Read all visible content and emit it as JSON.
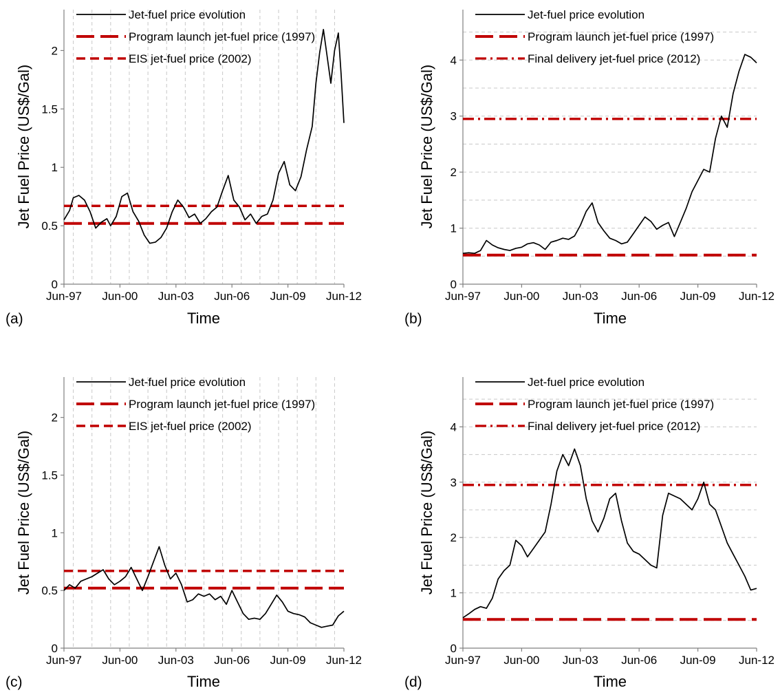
{
  "figure": {
    "xlabel": "Time",
    "ylabel": "Jet Fuel Price (US$/Gal)",
    "x_tick_labels": [
      "Jun-97",
      "Jun-00",
      "Jun-03",
      "Jun-06",
      "Jun-09",
      "Jun-12"
    ]
  },
  "colors": {
    "price_line": "#000000",
    "reference_lines": "#c00000",
    "grid": "#c8c8c8"
  },
  "chart_data": [
    {
      "panel_label": "(a)",
      "type": "line",
      "x_range": [
        1997.5,
        2012.5
      ],
      "ylim": [
        0,
        2.35
      ],
      "y_ticks": [
        0,
        0.5,
        1,
        1.5,
        2
      ],
      "y_tick_labels": [
        "0",
        "0.5",
        "1",
        "1.5",
        "2"
      ],
      "grid": "vertical dashed",
      "legend_position": "top-left",
      "series": [
        {
          "name": "Jet-fuel price evolution",
          "style": "solid",
          "x": [
            1997.5,
            1997.8,
            1998.0,
            1998.3,
            1998.6,
            1998.9,
            1999.2,
            1999.5,
            1999.8,
            2000.0,
            2000.3,
            2000.6,
            2000.9,
            2001.2,
            2001.5,
            2001.8,
            2002.1,
            2002.4,
            2002.7,
            2003.0,
            2003.3,
            2003.6,
            2003.9,
            2004.2,
            2004.5,
            2004.8,
            2005.1,
            2005.4,
            2005.7,
            2006.0,
            2006.3,
            2006.6,
            2006.9,
            2007.2,
            2007.5,
            2007.8,
            2008.1,
            2008.4,
            2008.7,
            2009.0,
            2009.3,
            2009.6,
            2009.9,
            2010.2,
            2010.5,
            2010.8,
            2011.0,
            2011.2,
            2011.4,
            2011.6,
            2011.8,
            2012.0,
            2012.2,
            2012.35,
            2012.5
          ],
          "values": [
            0.55,
            0.63,
            0.74,
            0.76,
            0.72,
            0.62,
            0.48,
            0.53,
            0.56,
            0.5,
            0.58,
            0.75,
            0.78,
            0.62,
            0.54,
            0.42,
            0.35,
            0.36,
            0.4,
            0.48,
            0.62,
            0.72,
            0.66,
            0.57,
            0.6,
            0.52,
            0.56,
            0.62,
            0.66,
            0.8,
            0.93,
            0.72,
            0.66,
            0.55,
            0.6,
            0.52,
            0.58,
            0.6,
            0.72,
            0.95,
            1.05,
            0.85,
            0.8,
            0.92,
            1.15,
            1.35,
            1.72,
            1.98,
            2.18,
            1.95,
            1.72,
            2.0,
            2.15,
            1.8,
            1.38
          ]
        },
        {
          "name": "Program launch jet-fuel price (1997)",
          "style": "long-dash",
          "x": [
            1997.5,
            2012.5
          ],
          "values": [
            0.52,
            0.52
          ]
        },
        {
          "name": "EIS jet-fuel price (2002)",
          "style": "dash",
          "x": [
            1997.5,
            2012.5
          ],
          "values": [
            0.67,
            0.67
          ]
        }
      ]
    },
    {
      "panel_label": "(b)",
      "type": "line",
      "x_range": [
        1997.5,
        2012.5
      ],
      "ylim": [
        0,
        4.9
      ],
      "y_ticks": [
        0,
        1,
        2,
        3,
        4
      ],
      "y_tick_labels": [
        "0",
        "1",
        "2",
        "3",
        "4"
      ],
      "grid": "horizontal dashed",
      "legend_position": "top-left",
      "series": [
        {
          "name": "Jet-fuel price evolution",
          "style": "solid",
          "x": [
            1997.5,
            1997.8,
            1998.1,
            1998.4,
            1998.7,
            1999.0,
            1999.3,
            1999.6,
            1999.9,
            2000.2,
            2000.5,
            2000.8,
            2001.1,
            2001.4,
            2001.7,
            2002.0,
            2002.3,
            2002.6,
            2002.9,
            2003.2,
            2003.5,
            2003.8,
            2004.1,
            2004.4,
            2004.7,
            2005.0,
            2005.3,
            2005.6,
            2005.9,
            2006.2,
            2006.5,
            2006.8,
            2007.1,
            2007.4,
            2007.7,
            2008.0,
            2008.3,
            2008.6,
            2008.9,
            2009.2,
            2009.5,
            2009.8,
            2010.1,
            2010.4,
            2010.7,
            2011.0,
            2011.3,
            2011.6,
            2011.9,
            2012.2,
            2012.5
          ],
          "values": [
            0.55,
            0.56,
            0.55,
            0.6,
            0.78,
            0.7,
            0.65,
            0.62,
            0.6,
            0.64,
            0.66,
            0.72,
            0.74,
            0.7,
            0.62,
            0.75,
            0.78,
            0.82,
            0.8,
            0.86,
            1.05,
            1.3,
            1.45,
            1.1,
            0.95,
            0.82,
            0.78,
            0.72,
            0.75,
            0.9,
            1.05,
            1.2,
            1.12,
            0.98,
            1.05,
            1.1,
            0.85,
            1.1,
            1.35,
            1.65,
            1.85,
            2.05,
            2.0,
            2.6,
            3.0,
            2.8,
            3.4,
            3.8,
            4.1,
            4.05,
            3.95
          ]
        },
        {
          "name": "Program launch jet-fuel price (1997)",
          "style": "long-dash",
          "x": [
            1997.5,
            2012.5
          ],
          "values": [
            0.52,
            0.52
          ]
        },
        {
          "name": "Final delivery jet-fuel price (2012)",
          "style": "dash-dot",
          "x": [
            1997.5,
            2012.5
          ],
          "values": [
            2.95,
            2.95
          ]
        }
      ]
    },
    {
      "panel_label": "(c)",
      "type": "line",
      "x_range": [
        1997.5,
        2012.5
      ],
      "ylim": [
        0,
        2.35
      ],
      "y_ticks": [
        0,
        0.5,
        1,
        1.5,
        2
      ],
      "y_tick_labels": [
        "0",
        "0.5",
        "1",
        "1.5",
        "2"
      ],
      "grid": "vertical dashed",
      "legend_position": "top-left",
      "series": [
        {
          "name": "Jet-fuel price evolution",
          "style": "solid",
          "x": [
            1997.5,
            1997.8,
            1998.1,
            1998.4,
            1998.7,
            1999.0,
            1999.3,
            1999.6,
            1999.9,
            2000.2,
            2000.5,
            2000.8,
            2001.1,
            2001.4,
            2001.7,
            2002.0,
            2002.3,
            2002.6,
            2002.9,
            2003.2,
            2003.5,
            2003.8,
            2004.1,
            2004.4,
            2004.7,
            2005.0,
            2005.3,
            2005.6,
            2005.9,
            2006.2,
            2006.5,
            2006.8,
            2007.1,
            2007.4,
            2007.7,
            2008.0,
            2008.3,
            2008.6,
            2008.9,
            2009.2,
            2009.5,
            2009.8,
            2010.1,
            2010.4,
            2010.7,
            2011.0,
            2011.3,
            2011.6,
            2011.9,
            2012.2,
            2012.5
          ],
          "values": [
            0.5,
            0.55,
            0.52,
            0.58,
            0.6,
            0.62,
            0.65,
            0.68,
            0.6,
            0.55,
            0.58,
            0.62,
            0.7,
            0.6,
            0.5,
            0.62,
            0.75,
            0.88,
            0.72,
            0.6,
            0.65,
            0.55,
            0.4,
            0.42,
            0.47,
            0.45,
            0.47,
            0.42,
            0.45,
            0.38,
            0.5,
            0.4,
            0.3,
            0.25,
            0.26,
            0.25,
            0.3,
            0.38,
            0.46,
            0.4,
            0.32,
            0.3,
            0.29,
            0.27,
            0.22,
            0.2,
            0.18,
            0.19,
            0.2,
            0.28,
            0.32
          ]
        },
        {
          "name": "Program launch jet-fuel price (1997)",
          "style": "long-dash",
          "x": [
            1997.5,
            2012.5
          ],
          "values": [
            0.52,
            0.52
          ]
        },
        {
          "name": "EIS jet-fuel price (2002)",
          "style": "dash",
          "x": [
            1997.5,
            2012.5
          ],
          "values": [
            0.67,
            0.67
          ]
        }
      ]
    },
    {
      "panel_label": "(d)",
      "type": "line",
      "x_range": [
        1997.5,
        2012.5
      ],
      "ylim": [
        0,
        4.9
      ],
      "y_ticks": [
        0,
        1,
        2,
        3,
        4
      ],
      "y_tick_labels": [
        "0",
        "1",
        "2",
        "3",
        "4"
      ],
      "grid": "horizontal dashed",
      "legend_position": "top-left",
      "series": [
        {
          "name": "Jet-fuel price evolution",
          "style": "solid",
          "x": [
            1997.5,
            1997.8,
            1998.1,
            1998.4,
            1998.7,
            1999.0,
            1999.3,
            1999.6,
            1999.9,
            2000.2,
            2000.5,
            2000.8,
            2001.1,
            2001.4,
            2001.7,
            2002.0,
            2002.3,
            2002.6,
            2002.9,
            2003.2,
            2003.5,
            2003.8,
            2004.1,
            2004.4,
            2004.7,
            2005.0,
            2005.3,
            2005.6,
            2005.9,
            2006.2,
            2006.5,
            2006.8,
            2007.1,
            2007.4,
            2007.7,
            2008.0,
            2008.3,
            2008.6,
            2008.9,
            2009.2,
            2009.5,
            2009.8,
            2010.1,
            2010.4,
            2010.7,
            2011.0,
            2011.3,
            2011.6,
            2011.9,
            2012.2,
            2012.5
          ],
          "values": [
            0.55,
            0.62,
            0.7,
            0.75,
            0.72,
            0.9,
            1.25,
            1.4,
            1.5,
            1.95,
            1.85,
            1.65,
            1.8,
            1.95,
            2.1,
            2.6,
            3.2,
            3.5,
            3.3,
            3.6,
            3.3,
            2.7,
            2.3,
            2.1,
            2.35,
            2.7,
            2.8,
            2.3,
            1.9,
            1.75,
            1.7,
            1.6,
            1.5,
            1.45,
            2.4,
            2.8,
            2.75,
            2.7,
            2.6,
            2.5,
            2.7,
            3.0,
            2.6,
            2.5,
            2.2,
            1.9,
            1.7,
            1.5,
            1.3,
            1.05,
            1.08
          ]
        },
        {
          "name": "Program launch jet-fuel price (1997)",
          "style": "long-dash",
          "x": [
            1997.5,
            2012.5
          ],
          "values": [
            0.52,
            0.52
          ]
        },
        {
          "name": "Final delivery jet-fuel price (2012)",
          "style": "dash-dot",
          "x": [
            1997.5,
            2012.5
          ],
          "values": [
            2.95,
            2.95
          ]
        }
      ]
    }
  ]
}
